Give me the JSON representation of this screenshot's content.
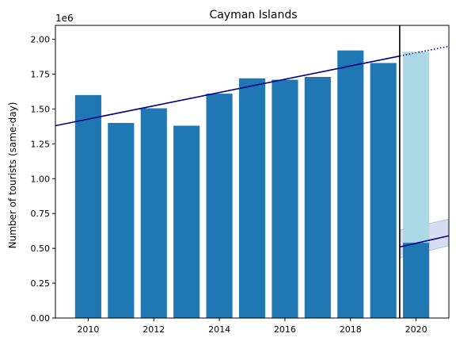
{
  "chart_data": {
    "type": "bar",
    "title": "Cayman Islands",
    "xlabel": "",
    "ylabel": "Number of tourists (same-day)",
    "offset_label": "1e6",
    "xlim": [
      2009,
      2021
    ],
    "ylim": [
      0,
      2100000
    ],
    "xticks": [
      2010,
      2012,
      2014,
      2016,
      2018,
      2020
    ],
    "yticks": [
      0,
      250000,
      500000,
      750000,
      1000000,
      1250000,
      1500000,
      1750000,
      2000000
    ],
    "ytick_labels": [
      "0.00",
      "0.25",
      "0.50",
      "0.75",
      "1.00",
      "1.25",
      "1.50",
      "1.75",
      "2.00"
    ],
    "grid": false,
    "bar_width": 0.8,
    "bars": [
      {
        "x": 2010,
        "value": 1600000
      },
      {
        "x": 2011,
        "value": 1400000
      },
      {
        "x": 2012,
        "value": 1505000
      },
      {
        "x": 2013,
        "value": 1380000
      },
      {
        "x": 2014,
        "value": 1610000
      },
      {
        "x": 2015,
        "value": 1720000
      },
      {
        "x": 2016,
        "value": 1710000
      },
      {
        "x": 2017,
        "value": 1730000
      },
      {
        "x": 2018,
        "value": 1920000
      },
      {
        "x": 2019,
        "value": 1830000
      }
    ],
    "expected_bar": {
      "x": 2020,
      "value": 1910000
    },
    "actual_bar": {
      "x": 2020,
      "value": 540000
    },
    "trend_line": {
      "x": [
        2009,
        2019.5
      ],
      "y": [
        1380000,
        1880000
      ]
    },
    "trend_extension": {
      "x": [
        2019.5,
        2021
      ],
      "y": [
        1880000,
        1950000
      ]
    },
    "post_line": {
      "x": [
        2019.5,
        2021
      ],
      "y": [
        510000,
        590000
      ]
    },
    "post_band": {
      "x": [
        2019.5,
        2021
      ],
      "lower": [
        430000,
        520000
      ],
      "upper": [
        630000,
        710000
      ]
    },
    "vline_x": 2019.5,
    "colors": {
      "bar": "#1f77b4",
      "expected_bar": "#add8e6",
      "trend": "#00008b",
      "band": "#b8bfe4",
      "vline": "#000000",
      "axis": "#000000"
    }
  }
}
